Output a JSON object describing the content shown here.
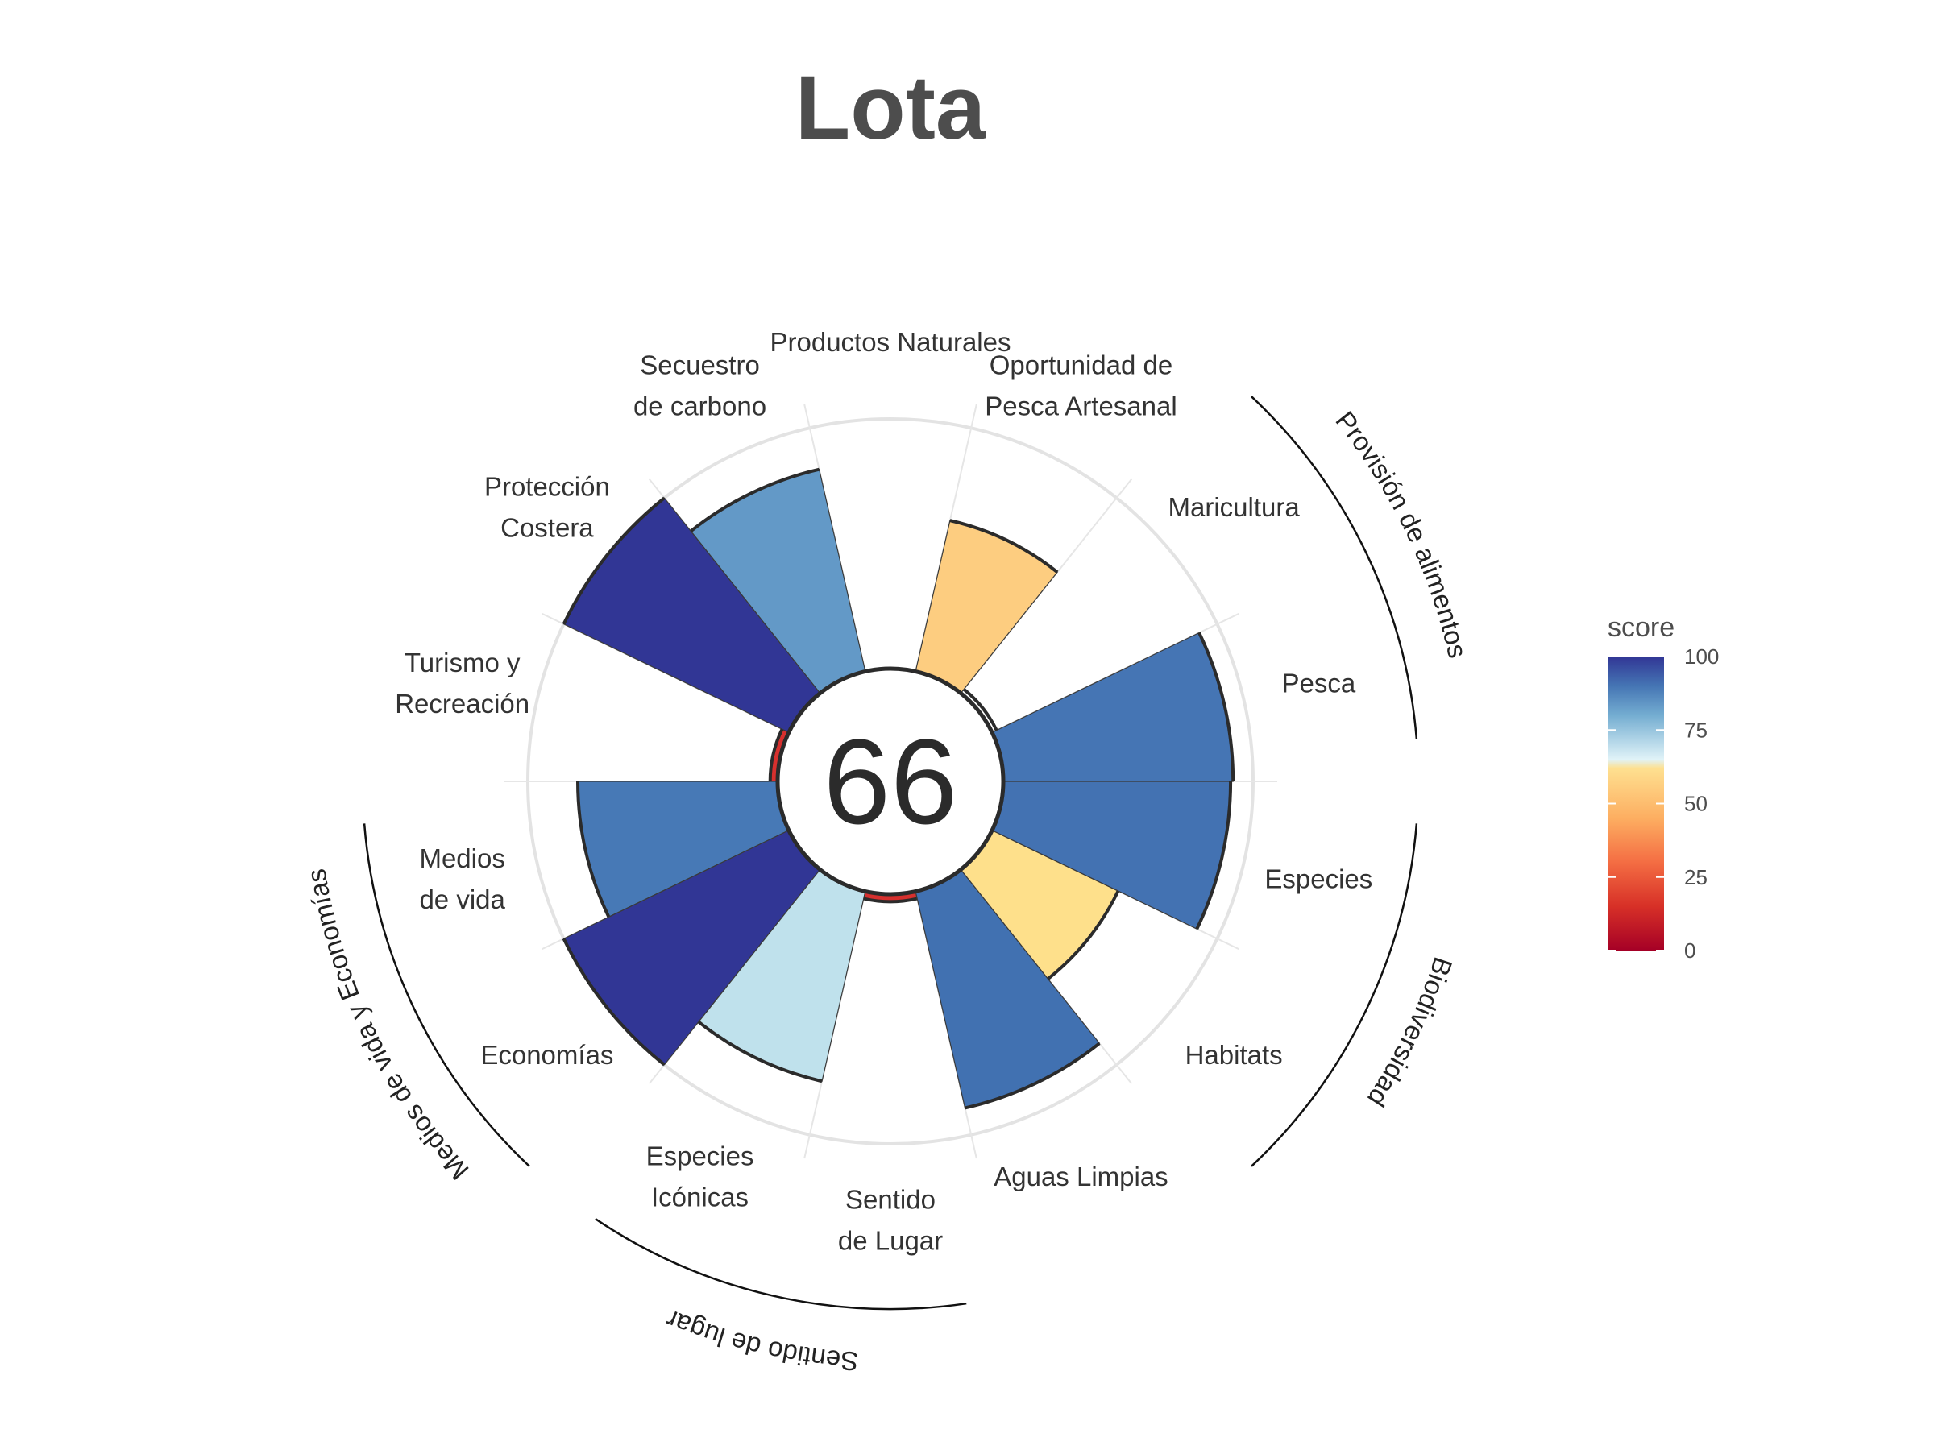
{
  "chart_data": {
    "type": "flower",
    "title": "Lota",
    "center_score": "66",
    "ylim": [
      0,
      100
    ],
    "petals": [
      {
        "key": "fp_fish",
        "label": [
          "Pesca"
        ],
        "score": 92,
        "color": "#4575b4",
        "group": "fp"
      },
      {
        "key": "fp_mar",
        "label": [
          "Maricultura"
        ],
        "score": 2,
        "color": "#ffffff",
        "group": "fp"
      },
      {
        "key": "ao",
        "label": [
          "Oportunidad de",
          "Pesca Artesanal"
        ],
        "score": 62,
        "color": "#fdcd80",
        "group": null
      },
      {
        "key": "np",
        "label": [
          "Productos Naturales"
        ],
        "score": 0,
        "color": "#ffffff",
        "group": null
      },
      {
        "key": "cs",
        "label": [
          "Secuestro",
          "de carbono"
        ],
        "score": 83,
        "color": "#6399c7",
        "group": null
      },
      {
        "key": "cp",
        "label": [
          "Protección",
          "Costera"
        ],
        "score": 100,
        "color": "#313695",
        "group": null
      },
      {
        "key": "tr",
        "label": [
          "Turismo y",
          "Recreación"
        ],
        "score": 3,
        "color": "#d7302e",
        "group": null
      },
      {
        "key": "lv",
        "label": [
          "Medios",
          "de vida"
        ],
        "score": 80,
        "color": "#4779b6",
        "group": "le"
      },
      {
        "key": "eco",
        "label": [
          "Economías"
        ],
        "score": 100,
        "color": "#313695",
        "group": "le"
      },
      {
        "key": "ico",
        "label": [
          "Especies",
          "Icónicas"
        ],
        "score": 78,
        "color": "#bfe1ec",
        "group": "sp"
      },
      {
        "key": "lsp",
        "label": [
          "Sentido",
          "de Lugar"
        ],
        "score": 3,
        "color": "#d7302e",
        "group": "sp"
      },
      {
        "key": "cw",
        "label": [
          "Aguas Limpias"
        ],
        "score": 89,
        "color": "#4171b1",
        "group": null
      },
      {
        "key": "hab",
        "label": [
          "Habitats"
        ],
        "score": 56,
        "color": "#fee08b",
        "group": "bd"
      },
      {
        "key": "spp",
        "label": [
          "Especies"
        ],
        "score": 91,
        "color": "#4372b2",
        "group": "bd"
      }
    ],
    "groups": {
      "fp": "Provisión de alimentos",
      "bd": "Biodiversidad",
      "sp": "Sentido de lugar",
      "le": "Medios de vida y Economías"
    },
    "legend": {
      "title": "score",
      "ticks": [
        "0",
        "25",
        "50",
        "75",
        "100"
      ],
      "gradient": [
        {
          "at": 0,
          "color": "#a50026"
        },
        {
          "at": 15,
          "color": "#d73027"
        },
        {
          "at": 30,
          "color": "#f46d43"
        },
        {
          "at": 45,
          "color": "#fdae61"
        },
        {
          "at": 62,
          "color": "#fee090"
        },
        {
          "at": 65,
          "color": "#e0f3f8"
        },
        {
          "at": 80,
          "color": "#74add1"
        },
        {
          "at": 90,
          "color": "#4575b4"
        },
        {
          "at": 100,
          "color": "#313695"
        }
      ]
    }
  }
}
